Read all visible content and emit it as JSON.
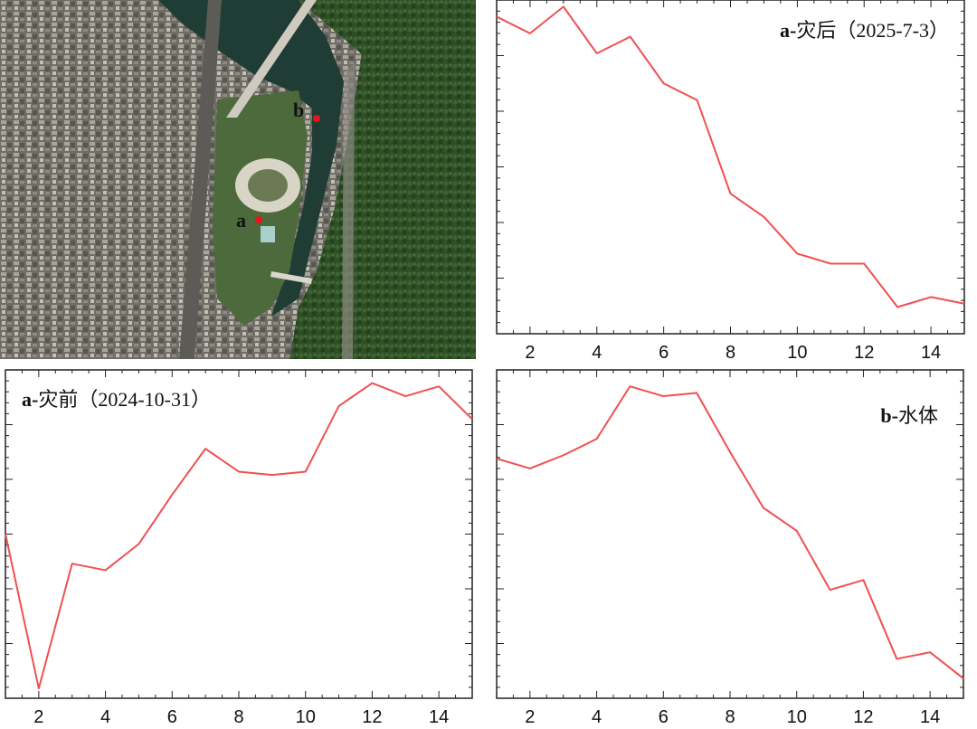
{
  "map": {
    "point_a_label": "a",
    "point_b_label": "b",
    "marker_color": "#e8141c",
    "water_color": "#1f3d34",
    "vegetation_color": "#2d4a25",
    "urban_color": "#8d8a80"
  },
  "chart_data": [
    {
      "type": "line",
      "title_prefix": "a-",
      "title_text": "灾后（2025-7-3）",
      "x": [
        1,
        2,
        3,
        4,
        5,
        6,
        7,
        8,
        9,
        10,
        11,
        12,
        13,
        14,
        15
      ],
      "series": [
        {
          "values": [
            0.95,
            0.9,
            0.98,
            0.84,
            0.89,
            0.75,
            0.7,
            0.42,
            0.35,
            0.24,
            0.21,
            0.21,
            0.08,
            0.11,
            0.09
          ]
        }
      ],
      "xlim": [
        1,
        15
      ],
      "ylim": [
        0,
        1
      ],
      "xticks": [
        2,
        4,
        6,
        8,
        10,
        12,
        14
      ],
      "color": "#f05050",
      "grid": false,
      "legend": "none"
    },
    {
      "type": "line",
      "title_prefix": "a-",
      "title_text": "灾前（2024-10-31）",
      "x": [
        1,
        2,
        3,
        4,
        5,
        6,
        7,
        8,
        9,
        10,
        11,
        12,
        13,
        14,
        15
      ],
      "series": [
        {
          "values": [
            0.5,
            0.03,
            0.41,
            0.39,
            0.47,
            0.62,
            0.76,
            0.69,
            0.68,
            0.69,
            0.89,
            0.96,
            0.92,
            0.95,
            0.85
          ]
        }
      ],
      "xlim": [
        1,
        15
      ],
      "ylim": [
        0,
        1
      ],
      "xticks": [
        2,
        4,
        6,
        8,
        10,
        12,
        14
      ],
      "color": "#f05050",
      "grid": false,
      "legend": "none"
    },
    {
      "type": "line",
      "title_prefix": "b-",
      "title_text": "水体",
      "x": [
        1,
        2,
        3,
        4,
        5,
        6,
        7,
        8,
        9,
        10,
        11,
        12,
        13,
        14,
        15
      ],
      "series": [
        {
          "values": [
            0.73,
            0.7,
            0.74,
            0.79,
            0.95,
            0.92,
            0.93,
            0.75,
            0.58,
            0.51,
            0.33,
            0.36,
            0.12,
            0.14,
            0.06
          ]
        }
      ],
      "xlim": [
        1,
        15
      ],
      "ylim": [
        0,
        1
      ],
      "xticks": [
        2,
        4,
        6,
        8,
        10,
        12,
        14
      ],
      "color": "#f05050",
      "grid": false,
      "legend": "none"
    }
  ]
}
